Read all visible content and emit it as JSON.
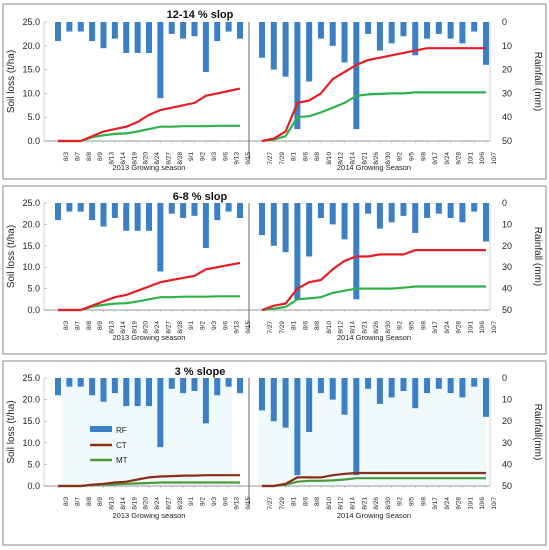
{
  "chart_data": [
    {
      "type": "bar+line",
      "title": "12-14 % slop",
      "ylabel": "Soil loss (t/ha)",
      "y2label": "Rainfall (mm)",
      "ylim": [
        0,
        25
      ],
      "y2lim": [
        50,
        0
      ],
      "y_ticks": [
        "0.0",
        "5.0",
        "10.0",
        "15.0",
        "20.0",
        "25.0"
      ],
      "y2_ticks": [
        "0",
        "10",
        "20",
        "30",
        "40",
        "50"
      ],
      "season1": {
        "label": "2013 Growing season",
        "x": [
          "8/3",
          "8/7",
          "8/8",
          "8/9",
          "8/13",
          "8/14",
          "8/19",
          "8/20",
          "8/24",
          "8/27",
          "8/28",
          "9/1",
          "9/2",
          "9/3",
          "9/6",
          "9/13",
          "9/15"
        ],
        "rainfall": [
          8,
          4,
          4,
          8,
          11,
          7,
          13,
          13,
          13,
          32,
          5,
          7,
          6,
          21,
          8,
          4,
          7
        ],
        "CT": [
          0,
          0,
          0,
          1,
          2,
          2.5,
          3,
          4,
          5.5,
          6.5,
          7,
          7.5,
          8,
          9.5,
          10,
          10.5,
          11
        ],
        "MT": [
          0,
          0,
          0,
          0.8,
          1.2,
          1.5,
          1.6,
          2,
          2.5,
          3,
          3,
          3.1,
          3.1,
          3.1,
          3.2,
          3.2,
          3.2
        ]
      },
      "season2": {
        "label": "2014 Growing Season",
        "x": [
          "7/27",
          "7/29",
          "8/1",
          "8/6",
          "8/8",
          "8/10",
          "8/12",
          "8/14",
          "8/21",
          "8/26",
          "8/30",
          "9/2",
          "9/5",
          "9/8",
          "9/17",
          "9/24",
          "9/28",
          "10/1",
          "10/6",
          "10/7"
        ],
        "rainfall": [
          15,
          20,
          23,
          45,
          25,
          7,
          10,
          17,
          45,
          5,
          12,
          9,
          6,
          14,
          7,
          5,
          7,
          9,
          4,
          18
        ],
        "CT": [
          0,
          0.5,
          2,
          8,
          8.5,
          10,
          13,
          14.5,
          16,
          17,
          17.5,
          18,
          18.5,
          19,
          19.5,
          19.5,
          19.5,
          19.5,
          19.5,
          19.5
        ],
        "MT": [
          0,
          0.3,
          1,
          5,
          5.2,
          6,
          7,
          8,
          9.5,
          9.8,
          9.9,
          10,
          10,
          10.2,
          10.2,
          10.2,
          10.2,
          10.2,
          10.2,
          10.2
        ]
      }
    },
    {
      "type": "bar+line",
      "title": "6-8 % slop",
      "ylabel": "Soil loss (t/ha)",
      "y2label": "Rainfall (mm)",
      "ylim": [
        0,
        25
      ],
      "y2lim": [
        50,
        0
      ],
      "y_ticks": [
        "0.0",
        "5.0",
        "10.0",
        "15.0",
        "20.0",
        "25.0"
      ],
      "y2_ticks": [
        "0",
        "10",
        "20",
        "30",
        "40",
        "50"
      ],
      "season1": {
        "label": "2013 Growing season",
        "x": [
          "8/3",
          "8/7",
          "8/8",
          "8/9",
          "8/13",
          "8/14",
          "8/19",
          "8/20",
          "8/24",
          "8/27",
          "8/28",
          "9/1",
          "9/2",
          "9/3",
          "9/6",
          "9/13",
          "9/15"
        ],
        "rainfall": [
          8,
          4,
          4,
          8,
          11,
          7,
          13,
          13,
          13,
          32,
          5,
          7,
          6,
          21,
          8,
          4,
          7
        ],
        "CT": [
          0,
          0,
          0,
          1,
          2,
          3,
          3.5,
          4.5,
          5.5,
          6.5,
          7,
          7.5,
          8,
          9.5,
          10,
          10.5,
          11
        ],
        "MT": [
          0,
          0,
          0,
          0.8,
          1.2,
          1.5,
          1.6,
          2,
          2.5,
          3,
          3,
          3.1,
          3.1,
          3.1,
          3.2,
          3.2,
          3.2
        ]
      },
      "season2": {
        "label": "2014 Growing Season",
        "x": [
          "7/27",
          "7/29",
          "8/1",
          "8/6",
          "8/8",
          "8/10",
          "8/12",
          "8/14",
          "8/21",
          "8/26",
          "8/30",
          "9/2",
          "9/5",
          "9/8",
          "9/17",
          "9/24",
          "9/28",
          "10/1",
          "10/6",
          "10/7"
        ],
        "rainfall": [
          15,
          20,
          23,
          45,
          25,
          7,
          10,
          17,
          45,
          5,
          12,
          9,
          6,
          14,
          7,
          5,
          7,
          9,
          4,
          18
        ],
        "CT": [
          0,
          1,
          1.5,
          5,
          6.5,
          7,
          9.5,
          11.5,
          12.5,
          12.5,
          13,
          13,
          13,
          14,
          14,
          14,
          14,
          14,
          14,
          14
        ],
        "MT": [
          0,
          0.3,
          0.7,
          2.5,
          2.7,
          3,
          4,
          4.5,
          5,
          5,
          5,
          5,
          5.2,
          5.5,
          5.5,
          5.5,
          5.5,
          5.5,
          5.5,
          5.5
        ]
      }
    },
    {
      "type": "bar+line",
      "title": "3 % slope",
      "ylabel": "Soil loss (t/ha)",
      "y2label": "Rainfall(mm)",
      "ylim": [
        0,
        25
      ],
      "y2lim": [
        50,
        0
      ],
      "y_ticks": [
        "0.0",
        "5.0",
        "10.0",
        "15.0",
        "20.0",
        "25.0"
      ],
      "y2_ticks": [
        "0",
        "10",
        "20",
        "30",
        "40",
        "50"
      ],
      "legend": [
        "RF",
        "CT",
        "MT"
      ],
      "season1": {
        "label": "2013 Growing season",
        "x": [
          "8/3",
          "8/7",
          "8/8",
          "8/9",
          "8/13",
          "8/14",
          "8/19",
          "8/20",
          "8/24",
          "8/27",
          "8/28",
          "9/1",
          "9/2",
          "9/3",
          "9/6",
          "9/13",
          "9/15"
        ],
        "rainfall": [
          8,
          4,
          4,
          8,
          11,
          7,
          13,
          13,
          13,
          32,
          5,
          7,
          6,
          21,
          8,
          4,
          7
        ],
        "CT": [
          0,
          0,
          0,
          0.3,
          0.5,
          0.8,
          1,
          1.5,
          2,
          2.2,
          2.3,
          2.4,
          2.4,
          2.5,
          2.5,
          2.5,
          2.5
        ],
        "MT": [
          0,
          0,
          0,
          0.2,
          0.3,
          0.4,
          0.5,
          0.6,
          0.7,
          0.8,
          0.8,
          0.8,
          0.8,
          0.8,
          0.8,
          0.8,
          0.8
        ]
      },
      "season2": {
        "label": "2014 Growing Season",
        "x": [
          "7/27",
          "7/29",
          "8/1",
          "8/6",
          "8/8",
          "8/10",
          "8/12",
          "8/14",
          "8/21",
          "8/26",
          "8/30",
          "9/2",
          "9/5",
          "9/8",
          "9/17",
          "9/24",
          "9/28",
          "10/1",
          "10/6",
          "10/7"
        ],
        "rainfall": [
          15,
          20,
          23,
          45,
          25,
          7,
          10,
          17,
          45,
          5,
          12,
          9,
          6,
          14,
          7,
          5,
          7,
          9,
          4,
          18
        ],
        "CT": [
          0,
          0,
          0.5,
          2,
          2,
          2,
          2.5,
          2.8,
          3,
          3,
          3,
          3,
          3,
          3,
          3,
          3,
          3,
          3,
          3,
          3
        ],
        "MT": [
          0,
          0,
          0.3,
          1,
          1.2,
          1.2,
          1.3,
          1.5,
          1.8,
          1.8,
          1.8,
          1.8,
          1.8,
          1.8,
          1.8,
          1.8,
          1.8,
          1.8,
          1.8,
          1.8
        ]
      }
    }
  ],
  "colors": {
    "rf": "#3b7fc4",
    "ct": "#e31e24",
    "mt": "#2db34a",
    "ct_legend": "#8b2e16",
    "mt_legend": "#4c9a3a",
    "panel_bg_3pct": "#eaf6fb"
  }
}
